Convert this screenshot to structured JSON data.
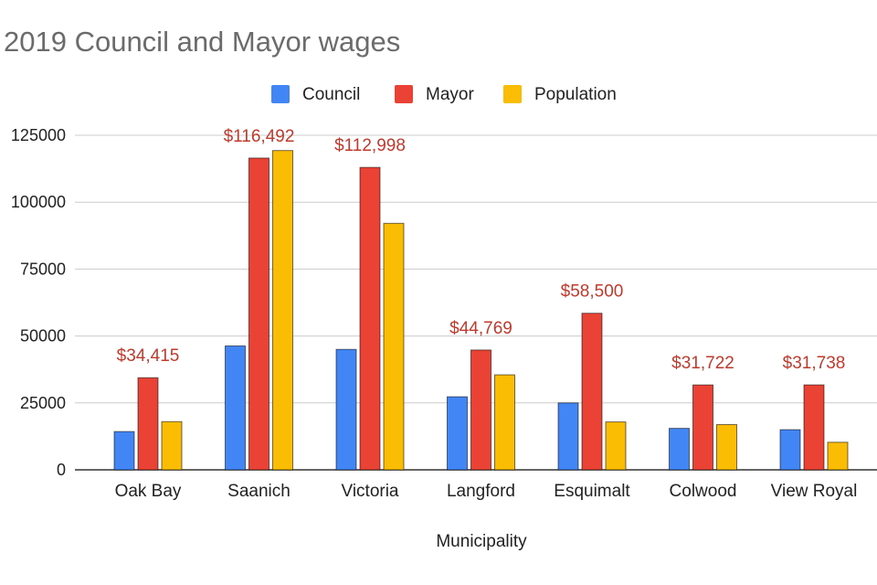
{
  "chart_data": {
    "type": "bar",
    "title": "2019 Council and Mayor wages",
    "xlabel": "Municipality",
    "ylabel": "",
    "ylim": [
      0,
      125000
    ],
    "yticks": [
      0,
      25000,
      50000,
      75000,
      100000,
      125000
    ],
    "ytick_labels": [
      "0",
      "25000",
      "50000",
      "75000",
      "100000",
      "125000"
    ],
    "grid": true,
    "legend_position": "top-center",
    "categories": [
      "Oak Bay",
      "Saanich",
      "Victoria",
      "Langford",
      "Esquimalt",
      "Colwood",
      "View Royal"
    ],
    "series": [
      {
        "name": "Council",
        "color": "#4285f4",
        "values": [
          14300,
          46300,
          45000,
          27300,
          25000,
          15500,
          15000
        ]
      },
      {
        "name": "Mayor",
        "color": "#ea4335",
        "values": [
          34415,
          116492,
          112998,
          44769,
          58500,
          31722,
          31738
        ]
      },
      {
        "name": "Population",
        "color": "#fbbc04",
        "values": [
          18000,
          119300,
          92100,
          35500,
          17900,
          16900,
          10300
        ]
      }
    ],
    "annotations": [
      "$34,415",
      "$116,492",
      "$112,998",
      "$44,769",
      "$58,500",
      "$31,722",
      "$31,738"
    ],
    "annotation_color": "#c0392b"
  }
}
